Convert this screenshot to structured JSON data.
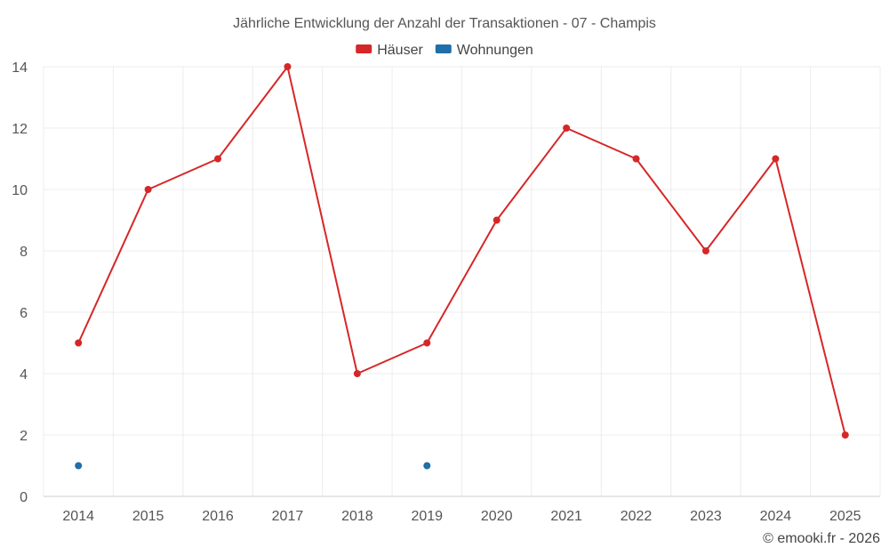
{
  "chart_data": {
    "type": "line",
    "title": "Jährliche Entwicklung der Anzahl der Transaktionen - 07 - Champis",
    "xlabel": "",
    "ylabel": "",
    "categories": [
      "2014",
      "2015",
      "2016",
      "2017",
      "2018",
      "2019",
      "2020",
      "2021",
      "2022",
      "2023",
      "2024",
      "2025"
    ],
    "ylim": [
      0,
      14
    ],
    "yticks": [
      0,
      2,
      4,
      6,
      8,
      10,
      12,
      14
    ],
    "grid": true,
    "legend_position": "top-center",
    "series": [
      {
        "name": "Häuser",
        "color": "#d62728",
        "values": [
          5,
          10,
          11,
          14,
          4,
          5,
          9,
          12,
          11,
          8,
          11,
          2
        ]
      },
      {
        "name": "Wohnungen",
        "color": "#1f6fa8",
        "values": [
          1,
          null,
          null,
          null,
          null,
          1,
          null,
          null,
          null,
          null,
          null,
          null
        ]
      }
    ]
  },
  "credit": "© emooki.fr - 2026"
}
